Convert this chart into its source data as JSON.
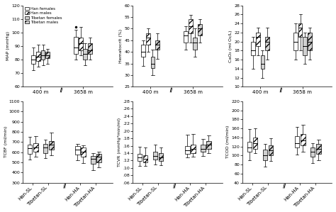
{
  "legend_labels": [
    "Han females",
    "Han males",
    "Tibetan females",
    "Tibetan males"
  ],
  "subplots": [
    {
      "ylabel": "MAP (mmHg)",
      "ylim": [
        60,
        120
      ],
      "yticks": [
        60,
        70,
        80,
        90,
        100,
        110,
        120
      ],
      "type": "top",
      "show_legend": true,
      "groups": [
        {
          "label": "400 m",
          "boxes": [
            {
              "med": 80,
              "q1": 77,
              "q3": 83,
              "whislo": 72,
              "whishi": 89,
              "fliers": [],
              "color": "white",
              "hatch": ""
            },
            {
              "med": 82,
              "q1": 79,
              "q3": 86,
              "whislo": 75,
              "whishi": 91,
              "fliers": [],
              "color": "white",
              "hatch": "////"
            },
            {
              "med": 83,
              "q1": 80,
              "q3": 87,
              "whislo": 76,
              "whishi": 91,
              "fliers": [],
              "color": "#d0d0d0",
              "hatch": ""
            },
            {
              "med": 83,
              "q1": 81,
              "q3": 86,
              "whislo": 77,
              "whishi": 88,
              "fliers": [],
              "color": "#d0d0d0",
              "hatch": "////"
            }
          ]
        },
        {
          "label": "3658 m",
          "boxes": [
            {
              "med": 89,
              "q1": 84,
              "q3": 97,
              "whislo": 80,
              "whishi": 102,
              "fliers": [
                104
              ],
              "color": "white",
              "hatch": ""
            },
            {
              "med": 92,
              "q1": 87,
              "q3": 96,
              "whislo": 83,
              "whishi": 104,
              "fliers": [],
              "color": "white",
              "hatch": "////"
            },
            {
              "med": 84,
              "q1": 80,
              "q3": 88,
              "whislo": 76,
              "whishi": 92,
              "fliers": [],
              "color": "#d0d0d0",
              "hatch": ""
            },
            {
              "med": 87,
              "q1": 84,
              "q3": 92,
              "whislo": 80,
              "whishi": 96,
              "fliers": [],
              "color": "#d0d0d0",
              "hatch": "////"
            }
          ]
        }
      ]
    },
    {
      "ylabel": "Hematocrit (%)",
      "ylim": [
        25,
        60
      ],
      "yticks": [
        25,
        30,
        35,
        40,
        45,
        50,
        55,
        60
      ],
      "type": "top",
      "show_legend": false,
      "groups": [
        {
          "label": "400 m",
          "boxes": [
            {
              "med": 40,
              "q1": 38,
              "q3": 43,
              "whislo": 34,
              "whishi": 45,
              "fliers": [],
              "color": "white",
              "hatch": ""
            },
            {
              "med": 46,
              "q1": 43,
              "q3": 48,
              "whislo": 40,
              "whishi": 50,
              "fliers": [],
              "color": "white",
              "hatch": "////"
            },
            {
              "med": 35,
              "q1": 33,
              "q3": 38,
              "whislo": 30,
              "whishi": 41,
              "fliers": [],
              "color": "#d0d0d0",
              "hatch": ""
            },
            {
              "med": 43,
              "q1": 41,
              "q3": 45,
              "whislo": 37,
              "whishi": 48,
              "fliers": [],
              "color": "#d0d0d0",
              "hatch": "////"
            }
          ]
        },
        {
          "label": "3658 m",
          "boxes": [
            {
              "med": 47,
              "q1": 44,
              "q3": 49,
              "whislo": 41,
              "whishi": 51,
              "fliers": [],
              "color": "white",
              "hatch": ""
            },
            {
              "med": 51,
              "q1": 48,
              "q3": 54,
              "whislo": 44,
              "whishi": 56,
              "fliers": [],
              "color": "white",
              "hatch": "////"
            },
            {
              "med": 44,
              "q1": 41,
              "q3": 46,
              "whislo": 38,
              "whishi": 50,
              "fliers": [],
              "color": "#d0d0d0",
              "hatch": ""
            },
            {
              "med": 50,
              "q1": 47,
              "q3": 52,
              "whislo": 44,
              "whishi": 54,
              "fliers": [],
              "color": "#d0d0d0",
              "hatch": "////"
            }
          ]
        }
      ]
    },
    {
      "ylabel": "CaO₂ (ml O₂/L)",
      "ylim": [
        10,
        28
      ],
      "yticks": [
        10,
        12,
        14,
        16,
        18,
        20,
        22,
        24,
        26,
        28
      ],
      "type": "top",
      "show_legend": false,
      "groups": [
        {
          "label": "400 m",
          "boxes": [
            {
              "med": 18,
              "q1": 17,
              "q3": 20,
              "whislo": 14,
              "whishi": 21,
              "fliers": [],
              "color": "white",
              "hatch": ""
            },
            {
              "med": 21,
              "q1": 19,
              "q3": 22,
              "whislo": 17,
              "whishi": 23,
              "fliers": [],
              "color": "white",
              "hatch": "////"
            },
            {
              "med": 15,
              "q1": 14,
              "q3": 17,
              "whislo": 12,
              "whishi": 18,
              "fliers": [],
              "color": "#d0d0d0",
              "hatch": ""
            },
            {
              "med": 20,
              "q1": 18,
              "q3": 21,
              "whislo": 16,
              "whishi": 23,
              "fliers": [],
              "color": "#d0d0d0",
              "hatch": "////"
            }
          ]
        },
        {
          "label": "3658 m",
          "boxes": [
            {
              "med": 20,
              "q1": 18,
              "q3": 22,
              "whislo": 16,
              "whishi": 24,
              "fliers": [],
              "color": "white",
              "hatch": ""
            },
            {
              "med": 23,
              "q1": 21,
              "q3": 24,
              "whislo": 18,
              "whishi": 26,
              "fliers": [],
              "color": "white",
              "hatch": "////"
            },
            {
              "med": 19,
              "q1": 17,
              "q3": 21,
              "whislo": 15,
              "whishi": 22,
              "fliers": [],
              "color": "#d0d0d0",
              "hatch": ""
            },
            {
              "med": 20,
              "q1": 18,
              "q3": 22,
              "whislo": 16,
              "whishi": 23,
              "fliers": [],
              "color": "#d0d0d0",
              "hatch": "////"
            }
          ]
        }
      ]
    },
    {
      "ylabel": "TCBF (ml/min)",
      "ylim": [
        300,
        1100
      ],
      "yticks": [
        300,
        400,
        500,
        600,
        700,
        800,
        900,
        1000,
        1100
      ],
      "type": "bottom",
      "show_legend": false,
      "groups": [
        {
          "label": "Han-SL",
          "boxes": [
            {
              "med": 638,
              "q1": 587,
              "q3": 672,
              "whislo": 530,
              "whishi": 750,
              "fliers": [],
              "color": "white",
              "hatch": ""
            },
            {
              "med": 648,
              "q1": 607,
              "q3": 688,
              "whislo": 555,
              "whishi": 760,
              "fliers": [],
              "color": "white",
              "hatch": "////"
            }
          ]
        },
        {
          "label": "Tibetan-SL",
          "boxes": [
            {
              "med": 645,
              "q1": 593,
              "q3": 678,
              "whislo": 545,
              "whishi": 720,
              "fliers": [],
              "color": "#d0d0d0",
              "hatch": ""
            },
            {
              "med": 672,
              "q1": 628,
              "q3": 710,
              "whislo": 570,
              "whishi": 790,
              "fliers": [],
              "color": "#d0d0d0",
              "hatch": "////"
            }
          ]
        },
        {
          "label": "Han-HA",
          "boxes": [
            {
              "med": 628,
              "q1": 580,
              "q3": 658,
              "whislo": 520,
              "whishi": 680,
              "fliers": [],
              "color": "white",
              "hatch": ""
            },
            {
              "med": 608,
              "q1": 555,
              "q3": 643,
              "whislo": 490,
              "whishi": 668,
              "fliers": [],
              "color": "white",
              "hatch": "////"
            }
          ]
        },
        {
          "label": "Tibetan-HA",
          "boxes": [
            {
              "med": 538,
              "q1": 483,
              "q3": 563,
              "whislo": 420,
              "whishi": 590,
              "fliers": [],
              "color": "#d0d0d0",
              "hatch": ""
            },
            {
              "med": 555,
              "q1": 503,
              "q3": 583,
              "whislo": 448,
              "whishi": 608,
              "fliers": [],
              "color": "#d0d0d0",
              "hatch": "////"
            }
          ]
        }
      ]
    },
    {
      "ylabel": "TCVR (mmHg*min/ml)",
      "ylim": [
        0.06,
        0.28
      ],
      "yticks": [
        0.06,
        0.08,
        0.1,
        0.12,
        0.14,
        0.16,
        0.18,
        0.2,
        0.22,
        0.24,
        0.26,
        0.28
      ],
      "yticklabels": [
        ".06",
        ".08",
        ".10",
        ".12",
        ".14",
        ".16",
        ".18",
        ".20",
        ".22",
        ".24",
        ".26",
        ".28"
      ],
      "type": "bottom",
      "show_legend": false,
      "groups": [
        {
          "label": "Han-SL",
          "boxes": [
            {
              "med": 0.128,
              "q1": 0.118,
              "q3": 0.138,
              "whislo": 0.105,
              "whishi": 0.158,
              "fliers": [],
              "color": "white",
              "hatch": ""
            },
            {
              "med": 0.124,
              "q1": 0.115,
              "q3": 0.134,
              "whislo": 0.105,
              "whishi": 0.155,
              "fliers": [],
              "color": "white",
              "hatch": "////"
            }
          ]
        },
        {
          "label": "Tibetan-SL",
          "boxes": [
            {
              "med": 0.132,
              "q1": 0.122,
              "q3": 0.143,
              "whislo": 0.11,
              "whishi": 0.162,
              "fliers": [],
              "color": "#d0d0d0",
              "hatch": ""
            },
            {
              "med": 0.128,
              "q1": 0.119,
              "q3": 0.14,
              "whislo": 0.108,
              "whishi": 0.155,
              "fliers": [],
              "color": "#d0d0d0",
              "hatch": "////"
            }
          ]
        },
        {
          "label": "Han-HA",
          "boxes": [
            {
              "med": 0.148,
              "q1": 0.138,
              "q3": 0.159,
              "whislo": 0.128,
              "whishi": 0.19,
              "fliers": [],
              "color": "white",
              "hatch": ""
            },
            {
              "med": 0.152,
              "q1": 0.14,
              "q3": 0.162,
              "whislo": 0.13,
              "whishi": 0.192,
              "fliers": [],
              "color": "white",
              "hatch": "////"
            }
          ]
        },
        {
          "label": "Tibetan-HA",
          "boxes": [
            {
              "med": 0.152,
              "q1": 0.143,
              "q3": 0.162,
              "whislo": 0.133,
              "whishi": 0.178,
              "fliers": [],
              "color": "#d0d0d0",
              "hatch": ""
            },
            {
              "med": 0.162,
              "q1": 0.152,
              "q3": 0.172,
              "whislo": 0.14,
              "whishi": 0.188,
              "fliers": [],
              "color": "#d0d0d0",
              "hatch": "////"
            }
          ]
        }
      ]
    },
    {
      "ylabel": "TCOD (ml/min)",
      "ylim": [
        40,
        220
      ],
      "yticks": [
        40,
        60,
        80,
        100,
        120,
        140,
        160,
        180,
        200,
        220
      ],
      "type": "bottom",
      "show_legend": false,
      "groups": [
        {
          "label": "Han-SL",
          "boxes": [
            {
              "med": 118,
              "q1": 108,
              "q3": 130,
              "whislo": 90,
              "whishi": 158,
              "fliers": [],
              "color": "white",
              "hatch": ""
            },
            {
              "med": 128,
              "q1": 115,
              "q3": 140,
              "whislo": 105,
              "whishi": 160,
              "fliers": [],
              "color": "white",
              "hatch": "////"
            }
          ]
        },
        {
          "label": "Tibetan-SL",
          "boxes": [
            {
              "med": 100,
              "q1": 90,
              "q3": 113,
              "whislo": 75,
              "whishi": 125,
              "fliers": [],
              "color": "#d0d0d0",
              "hatch": ""
            },
            {
              "med": 112,
              "q1": 100,
              "q3": 123,
              "whislo": 88,
              "whishi": 138,
              "fliers": [],
              "color": "#d0d0d0",
              "hatch": "////"
            }
          ]
        },
        {
          "label": "Han-HA",
          "boxes": [
            {
              "med": 128,
              "q1": 118,
              "q3": 143,
              "whislo": 102,
              "whishi": 163,
              "fliers": [],
              "color": "white",
              "hatch": ""
            },
            {
              "med": 133,
              "q1": 122,
              "q3": 148,
              "whislo": 108,
              "whishi": 168,
              "fliers": [],
              "color": "white",
              "hatch": "////"
            }
          ]
        },
        {
          "label": "Tibetan-HA",
          "boxes": [
            {
              "med": 108,
              "q1": 98,
              "q3": 118,
              "whislo": 83,
              "whishi": 128,
              "fliers": [],
              "color": "#d0d0d0",
              "hatch": ""
            },
            {
              "med": 115,
              "q1": 104,
              "q3": 125,
              "whislo": 90,
              "whishi": 135,
              "fliers": [],
              "color": "#d0d0d0",
              "hatch": "////"
            }
          ]
        }
      ]
    }
  ]
}
